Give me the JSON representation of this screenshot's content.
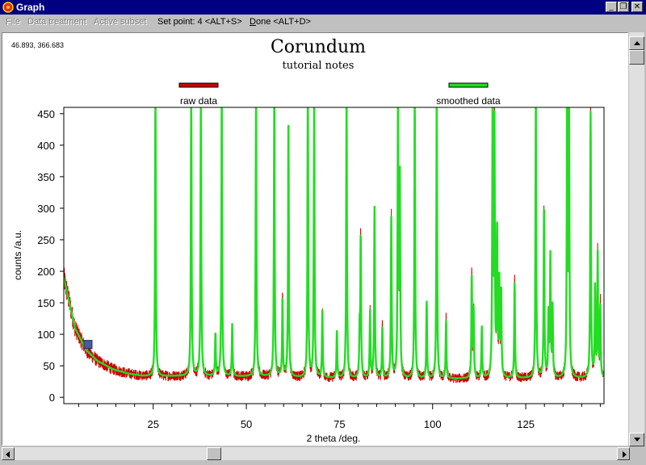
{
  "window": {
    "title": "Graph",
    "buttons": [
      "minimize-icon",
      "restore-icon",
      "close-icon"
    ]
  },
  "menu": {
    "file": "File",
    "data_treatment": "Data treatment",
    "active_subset": "Active subset",
    "set_point": "Set point: 4 <ALT+S>",
    "done_prefix": "D",
    "done_rest": "one <ALT+D>"
  },
  "cursor_readout": "46.893, 366.683",
  "colors": {
    "raw": "#cc0000",
    "smoothed": "#22dd22",
    "marker": "#4a5a9a",
    "titlebar": "#000080"
  },
  "chart_data": {
    "type": "line",
    "title": "Corundum",
    "subtitle": "tutorial notes",
    "xlabel": "2 theta /deg.",
    "ylabel": "counts /a.u.",
    "xlim": [
      1,
      146
    ],
    "ylim": [
      -10,
      460
    ],
    "x_ticks": [
      25,
      50,
      75,
      100,
      125
    ],
    "y_ticks": [
      0,
      50,
      100,
      150,
      200,
      250,
      300,
      350,
      400,
      450
    ],
    "legend_position": "top",
    "series": [
      {
        "name": "raw data",
        "color": "#cc0000"
      },
      {
        "name": "smoothed data",
        "color": "#22dd22"
      }
    ],
    "marker_point": {
      "x": 7.5,
      "y": 84
    },
    "background": [
      [
        1,
        190
      ],
      [
        4,
        110
      ],
      [
        7,
        75
      ],
      [
        10,
        58
      ],
      [
        14,
        45
      ],
      [
        18,
        38
      ],
      [
        22,
        34
      ],
      [
        25,
        33
      ],
      [
        35,
        34
      ],
      [
        45,
        33
      ],
      [
        55,
        33
      ],
      [
        65,
        31
      ],
      [
        75,
        30
      ],
      [
        100,
        29
      ],
      [
        125,
        30
      ],
      [
        146,
        30
      ]
    ],
    "peaks": [
      {
        "x": 25.6,
        "y": 480
      },
      {
        "x": 35.2,
        "y": 480
      },
      {
        "x": 37.8,
        "y": 480
      },
      {
        "x": 41.7,
        "y": 100
      },
      {
        "x": 43.4,
        "y": 480
      },
      {
        "x": 46.2,
        "y": 115
      },
      {
        "x": 52.6,
        "y": 480
      },
      {
        "x": 57.5,
        "y": 480
      },
      {
        "x": 59.7,
        "y": 155
      },
      {
        "x": 61.3,
        "y": 440
      },
      {
        "x": 66.5,
        "y": 480
      },
      {
        "x": 68.2,
        "y": 480
      },
      {
        "x": 70.4,
        "y": 135
      },
      {
        "x": 74.3,
        "y": 105
      },
      {
        "x": 76.9,
        "y": 480
      },
      {
        "x": 80.4,
        "y": 100
      },
      {
        "x": 80.7,
        "y": 250
      },
      {
        "x": 83.2,
        "y": 135
      },
      {
        "x": 84.4,
        "y": 300
      },
      {
        "x": 86.5,
        "y": 110
      },
      {
        "x": 88.9,
        "y": 290
      },
      {
        "x": 90.7,
        "y": 480
      },
      {
        "x": 91.2,
        "y": 340
      },
      {
        "x": 95.2,
        "y": 480
      },
      {
        "x": 98.4,
        "y": 150
      },
      {
        "x": 101.1,
        "y": 480
      },
      {
        "x": 103.6,
        "y": 120
      },
      {
        "x": 110.5,
        "y": 190
      },
      {
        "x": 111.0,
        "y": 135
      },
      {
        "x": 113.2,
        "y": 110
      },
      {
        "x": 116.1,
        "y": 480
      },
      {
        "x": 116.6,
        "y": 420
      },
      {
        "x": 117.3,
        "y": 260
      },
      {
        "x": 117.9,
        "y": 180
      },
      {
        "x": 118.4,
        "y": 160
      },
      {
        "x": 122.0,
        "y": 180
      },
      {
        "x": 127.7,
        "y": 480
      },
      {
        "x": 129.9,
        "y": 300
      },
      {
        "x": 131.1,
        "y": 130
      },
      {
        "x": 131.6,
        "y": 220
      },
      {
        "x": 132.2,
        "y": 140
      },
      {
        "x": 136.1,
        "y": 480
      },
      {
        "x": 136.6,
        "y": 480
      },
      {
        "x": 142.4,
        "y": 450
      },
      {
        "x": 143.6,
        "y": 170
      },
      {
        "x": 144.3,
        "y": 230
      },
      {
        "x": 145.0,
        "y": 140
      }
    ]
  }
}
